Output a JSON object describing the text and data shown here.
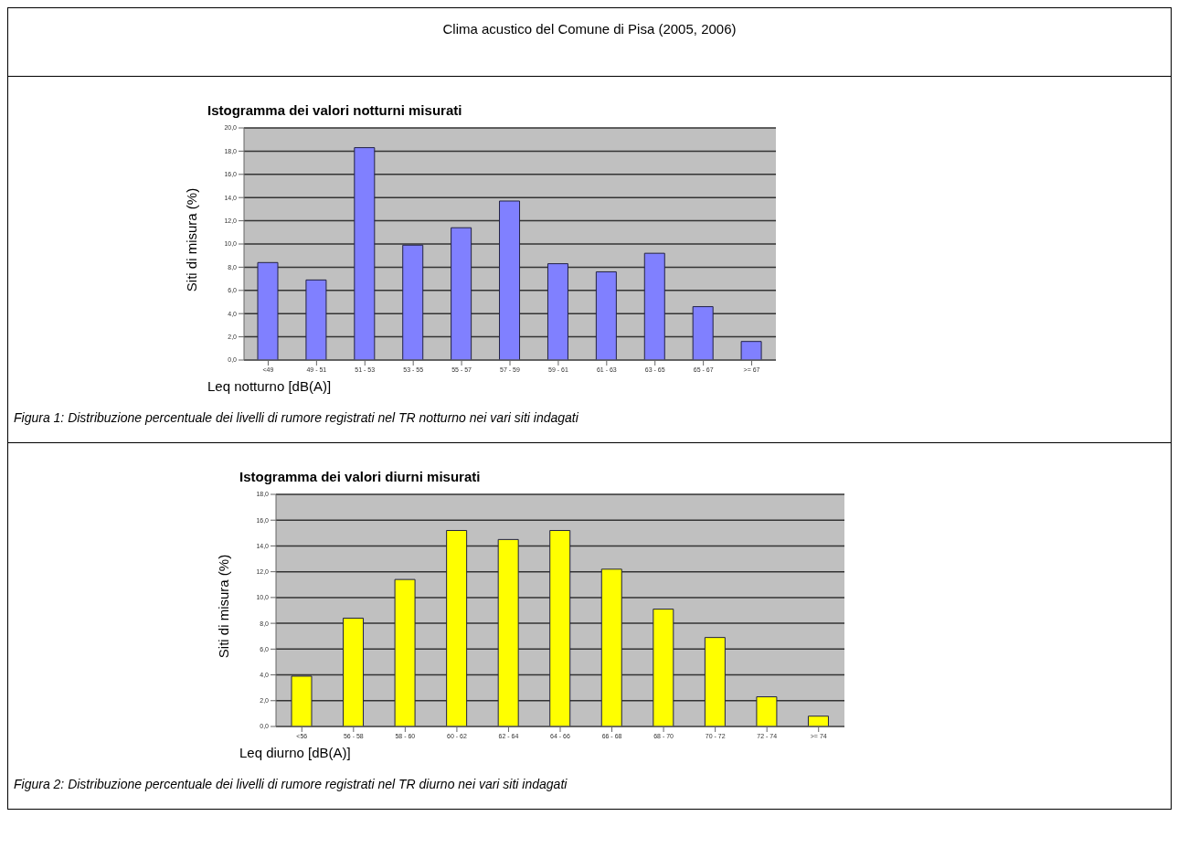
{
  "chart_data": [
    {
      "type": "bar",
      "title": "Istogramma dei valori notturni misurati",
      "xlabel": "Leq notturno [dB(A)]",
      "ylabel": "Siti di misura (%)",
      "annotations": [
        "Clima acustico del Comune di Pisa (2005, 2006)",
        "Figura 1: Distribuzione percentuale dei livelli di rumore registrati nel TR notturno nei vari siti indagati"
      ],
      "categories": [
        "<49",
        "49 - 51",
        "51 - 53",
        "53 - 55",
        "55 - 57",
        "57 - 59",
        "59 - 61",
        "61 - 63",
        "63 - 65",
        "65 - 67",
        ">= 67"
      ],
      "values": [
        8.4,
        6.9,
        18.3,
        9.9,
        11.4,
        13.7,
        8.3,
        7.6,
        9.2,
        4.6,
        1.6
      ],
      "color": "#8080ff",
      "ylim": [
        0,
        20
      ],
      "yticks": [
        {
          "value": 0,
          "label": "0,0"
        },
        {
          "value": 2,
          "label": "2,0"
        },
        {
          "value": 4,
          "label": "4,0"
        },
        {
          "value": 6,
          "label": "6,0"
        },
        {
          "value": 8,
          "label": "8,0"
        },
        {
          "value": 10,
          "label": "10,0"
        },
        {
          "value": 12,
          "label": "12,0"
        },
        {
          "value": 14,
          "label": "14,0"
        },
        {
          "value": 16,
          "label": "16,0"
        },
        {
          "value": 18,
          "label": "18,0"
        },
        {
          "value": 20,
          "label": "20,0"
        }
      ],
      "grid": "y",
      "legend": false
    },
    {
      "type": "bar",
      "title": "Istogramma dei valori diurni misurati",
      "xlabel": "Leq diurno [dB(A)]",
      "ylabel": "Siti di misura (%)",
      "annotations": [
        "Figura 2: Distribuzione percentuale dei livelli di rumore registrati nel TR diurno nei vari siti indagati"
      ],
      "categories": [
        "<56",
        "56 - 58",
        "58 - 60",
        "60 - 62",
        "62 - 64",
        "64 - 66",
        "66 - 68",
        "68 - 70",
        "70 - 72",
        "72 - 74",
        ">= 74"
      ],
      "values": [
        3.9,
        8.4,
        11.4,
        15.2,
        14.5,
        15.2,
        12.2,
        9.1,
        6.9,
        2.3,
        0.8
      ],
      "color": "#ffff00",
      "ylim": [
        0,
        18
      ],
      "yticks": [
        {
          "value": 0,
          "label": "0,0"
        },
        {
          "value": 2,
          "label": "2,0"
        },
        {
          "value": 4,
          "label": "4,0"
        },
        {
          "value": 6,
          "label": "6,0"
        },
        {
          "value": 8,
          "label": "8,0"
        },
        {
          "value": 10,
          "label": "10,0"
        },
        {
          "value": 12,
          "label": "12,0"
        },
        {
          "value": 14,
          "label": "14,0"
        },
        {
          "value": 16,
          "label": "16,0"
        },
        {
          "value": 18,
          "label": "18,0"
        }
      ],
      "grid": "y",
      "legend": false
    }
  ]
}
